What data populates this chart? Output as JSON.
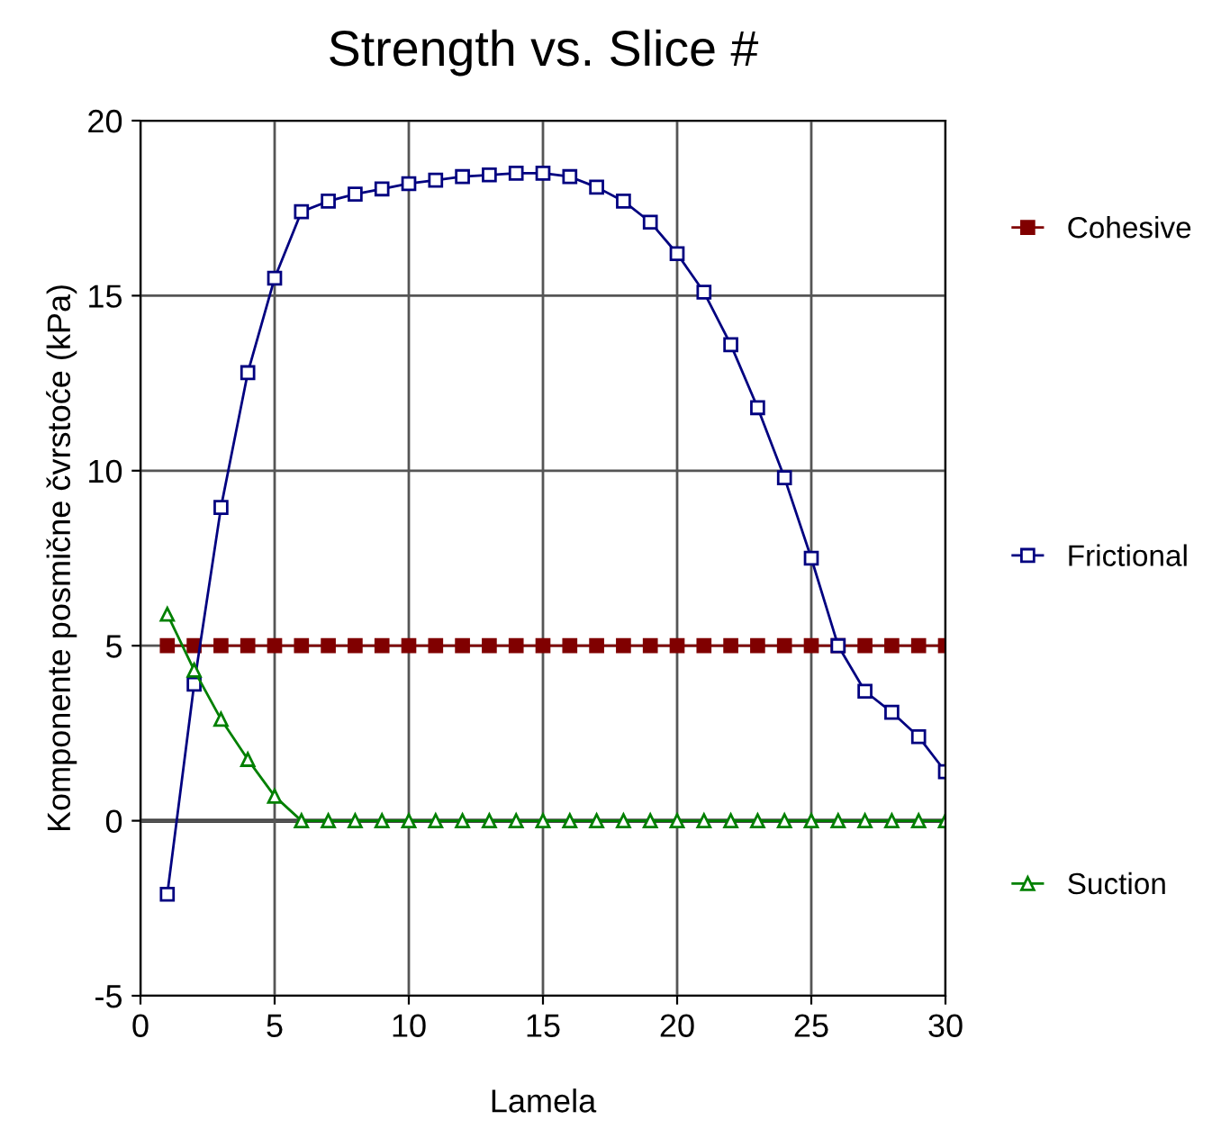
{
  "chart_data": {
    "type": "line",
    "title": "Strength vs. Slice #",
    "xlabel": "Lamela",
    "ylabel": "Komponente posmične čvrstoće (kPa)",
    "x": [
      1,
      2,
      3,
      4,
      5,
      6,
      7,
      8,
      9,
      10,
      11,
      12,
      13,
      14,
      15,
      16,
      17,
      18,
      19,
      20,
      21,
      22,
      23,
      24,
      25,
      26,
      27,
      28,
      29,
      30
    ],
    "series": [
      {
        "name": "Cohesive",
        "color": "#800000",
        "marker": "square",
        "values": [
          5,
          5,
          5,
          5,
          5,
          5,
          5,
          5,
          5,
          5,
          5,
          5,
          5,
          5,
          5,
          5,
          5,
          5,
          5,
          5,
          5,
          5,
          5,
          5,
          5,
          5,
          5,
          5,
          5,
          5
        ]
      },
      {
        "name": "Frictional",
        "color": "#000080",
        "marker": "square",
        "values": [
          -2.1,
          3.9,
          8.95,
          12.8,
          15.5,
          17.4,
          17.7,
          17.9,
          18.05,
          18.2,
          18.3,
          18.4,
          18.45,
          18.5,
          18.5,
          18.4,
          18.1,
          17.7,
          17.1,
          16.2,
          15.1,
          13.6,
          11.8,
          9.8,
          7.5,
          5.0,
          3.7,
          3.1,
          2.4,
          1.4
        ]
      },
      {
        "name": "Suction",
        "color": "#008000",
        "marker": "triangle",
        "values": [
          5.9,
          4.3,
          2.9,
          1.75,
          0.7,
          0,
          0,
          0,
          0,
          0,
          0,
          0,
          0,
          0,
          0,
          0,
          0,
          0,
          0,
          0,
          0,
          0,
          0,
          0,
          0,
          0,
          0,
          0,
          0,
          0
        ]
      }
    ],
    "xlim": [
      0,
      30
    ],
    "xticks": [
      0,
      5,
      10,
      15,
      20,
      25,
      30
    ],
    "ylim": [
      -5,
      20
    ],
    "yticks": [
      -5,
      0,
      5,
      10,
      15,
      20
    ],
    "grid": true,
    "legend": "right",
    "line_style": "solid"
  }
}
